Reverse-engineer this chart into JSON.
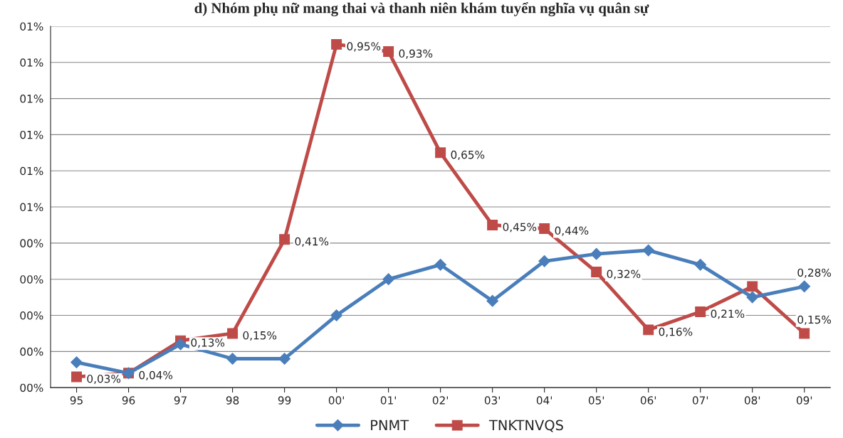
{
  "chart_data": {
    "type": "line",
    "title": "d) Nhóm phụ nữ mang thai và thanh niên khám tuyển nghĩa vụ quân sự",
    "categories": [
      "95",
      "96",
      "97",
      "98",
      "99",
      "00'",
      "01'",
      "02'",
      "03'",
      "04'",
      "05'",
      "06'",
      "07'",
      "08'",
      "09'"
    ],
    "series": [
      {
        "name": "PNMT",
        "color": "#4a7ebb",
        "marker": "diamond",
        "values": [
          0.07,
          0.04,
          0.12,
          0.08,
          0.08,
          0.2,
          0.3,
          0.34,
          0.24,
          0.35,
          0.37,
          0.38,
          0.34,
          0.25,
          0.28
        ],
        "value_labels": [
          null,
          null,
          null,
          null,
          null,
          null,
          null,
          null,
          null,
          null,
          null,
          null,
          null,
          null,
          "0,28%"
        ]
      },
      {
        "name": "TNKTNVQS",
        "color": "#be4b48",
        "marker": "square",
        "values": [
          0.03,
          0.04,
          0.13,
          0.15,
          0.41,
          0.95,
          0.93,
          0.65,
          0.45,
          0.44,
          0.32,
          0.16,
          0.21,
          0.28,
          0.15
        ],
        "value_labels": [
          "0,03%",
          "0,04%",
          "0,13%",
          "0,15%",
          "0,41%",
          "0,95%",
          "0,93%",
          "0,65%",
          "0,45%",
          "0,44%",
          "0,32%",
          "0,16%",
          "0,21%",
          null,
          "0,15%"
        ]
      }
    ],
    "ylim": [
      0,
      1.0
    ],
    "yticks": [
      {
        "value": 0,
        "label": "00%"
      },
      {
        "value": 0.1,
        "label": "00%"
      },
      {
        "value": 0.2,
        "label": "00%"
      },
      {
        "value": 0.3,
        "label": "00%"
      },
      {
        "value": 0.4,
        "label": "00%"
      },
      {
        "value": 0.5,
        "label": "01%"
      },
      {
        "value": 0.6,
        "label": "01%"
      },
      {
        "value": 0.7,
        "label": "01%"
      },
      {
        "value": 0.8,
        "label": "01%"
      },
      {
        "value": 0.9,
        "label": "01%"
      },
      {
        "value": 1.0,
        "label": "01%"
      }
    ],
    "grid": "y",
    "legend": "bottom",
    "line_style": "solid"
  }
}
